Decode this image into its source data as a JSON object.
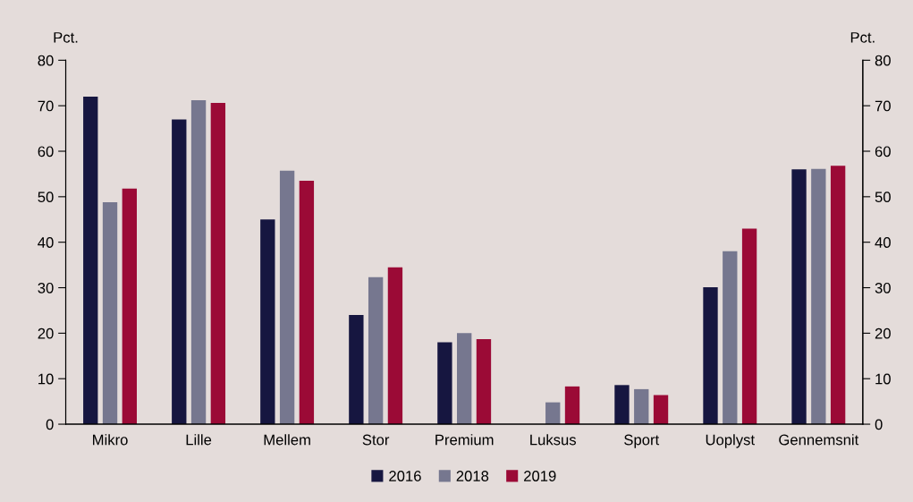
{
  "chart_data": {
    "type": "bar",
    "categories": [
      "Mikro",
      "Lille",
      "Mellem",
      "Stor",
      "Premium",
      "Luksus",
      "Sport",
      "Uoplyst",
      "Gennemsnit"
    ],
    "series": [
      {
        "name": "2016",
        "color": "#161640",
        "values": [
          72,
          67,
          45,
          24,
          18,
          null,
          8.6,
          30.1,
          56
        ]
      },
      {
        "name": "2018",
        "color": "#76778f",
        "values": [
          48.8,
          71.2,
          55.7,
          32.3,
          20,
          4.8,
          7.7,
          38,
          56.1
        ]
      },
      {
        "name": "2019",
        "color": "#9b0a36",
        "values": [
          51.8,
          70.6,
          53.5,
          34.5,
          18.7,
          8.3,
          6.4,
          43,
          56.8
        ]
      }
    ],
    "ylabel": "Pct.",
    "y2label": "Pct.",
    "ylim": [
      0,
      80
    ],
    "yticks": [
      0,
      10,
      20,
      30,
      40,
      50,
      60,
      70,
      80
    ],
    "y2lim": [
      0,
      80
    ],
    "y2ticks": [
      0,
      10,
      20,
      30,
      40,
      50,
      60,
      70,
      80
    ],
    "grid": false,
    "legend": "bottom"
  }
}
